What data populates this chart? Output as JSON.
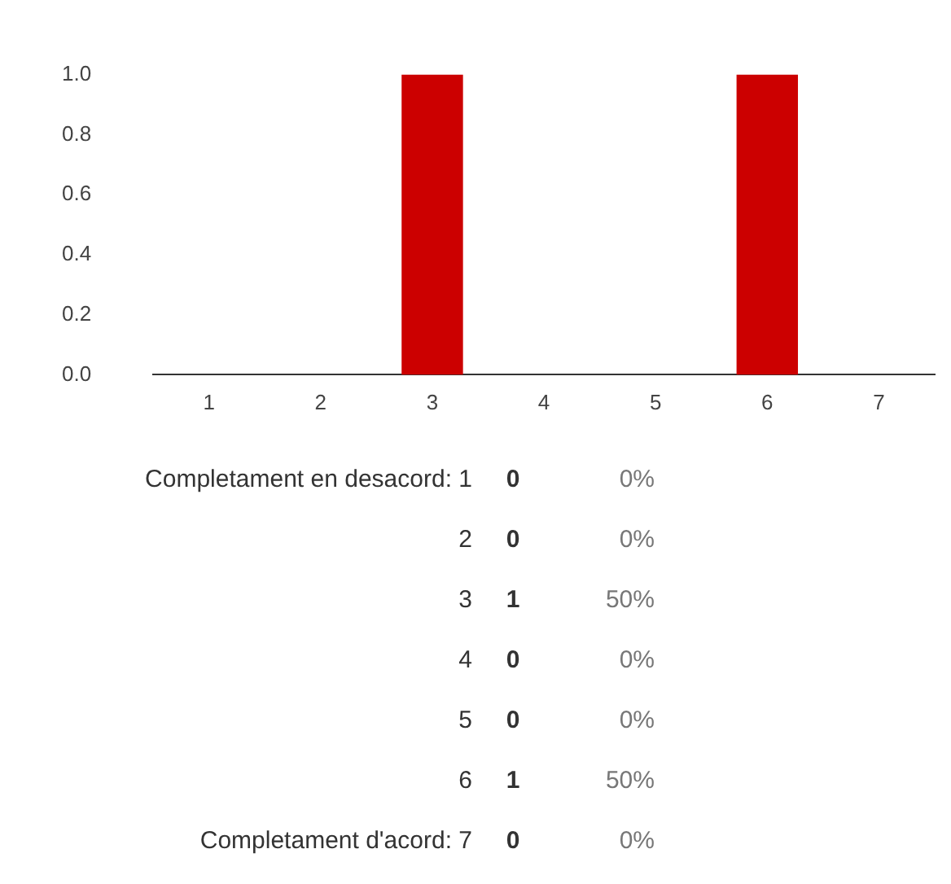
{
  "chart_data": {
    "type": "bar",
    "categories": [
      "1",
      "2",
      "3",
      "4",
      "5",
      "6",
      "7"
    ],
    "values": [
      0,
      0,
      1,
      0,
      0,
      1,
      0
    ],
    "color": "#cc0000",
    "ylim": [
      0,
      1
    ],
    "yticks": [
      {
        "value": 0,
        "label": "0.0"
      },
      {
        "value": 0.2,
        "label": "0.2"
      },
      {
        "value": 0.4,
        "label": "0.4"
      },
      {
        "value": 0.6,
        "label": "0.6"
      },
      {
        "value": 0.8,
        "label": "0.8"
      },
      {
        "value": 1,
        "label": "1.0"
      }
    ],
    "grid": false,
    "legend": false,
    "annotations": [
      "Completament en desacord:",
      "Completament d'acord:",
      "0",
      "0%",
      "0",
      "0%",
      "1",
      "50%",
      "0",
      "0%",
      "0",
      "0%",
      "1",
      "50%",
      "0",
      "0%"
    ]
  }
}
